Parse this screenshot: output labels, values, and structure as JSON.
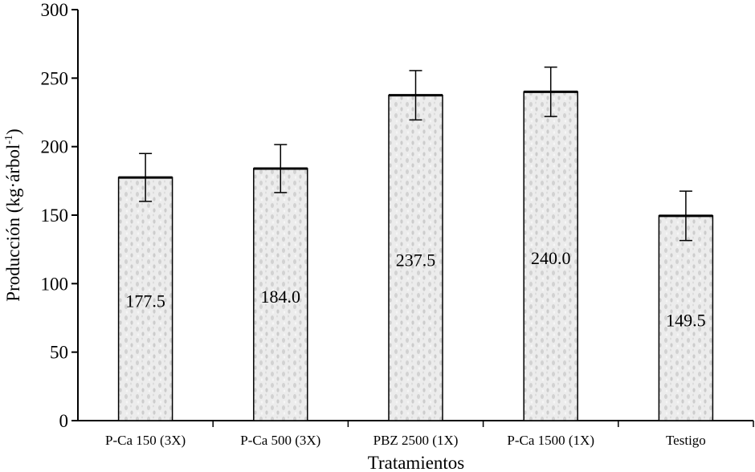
{
  "chart_data": {
    "type": "bar",
    "title": "",
    "xlabel": "Tratamientos",
    "ylabel": "Producción (kg·árbol",
    "ylabel_sup": "-1",
    "ylabel_close": ")",
    "ylim": [
      0,
      300
    ],
    "yticks": [
      0,
      50,
      100,
      150,
      200,
      250,
      300
    ],
    "grid": false,
    "categories": [
      "P-Ca 150 (3X)",
      "P-Ca 500 (3X)",
      "PBZ 2500 (1X)",
      "P-Ca 1500 (1X)",
      "Testigo"
    ],
    "values": [
      177.5,
      184.0,
      237.5,
      240.0,
      149.5
    ],
    "value_labels": [
      "177.5",
      "184.0",
      "237.5",
      "240.0",
      "149.5"
    ],
    "errors": [
      17.5,
      17.5,
      18,
      18,
      18
    ],
    "colors": {
      "bar_fill": "#e6e6e6",
      "speckle": "#c8c8c8",
      "stroke": "#000000"
    }
  }
}
